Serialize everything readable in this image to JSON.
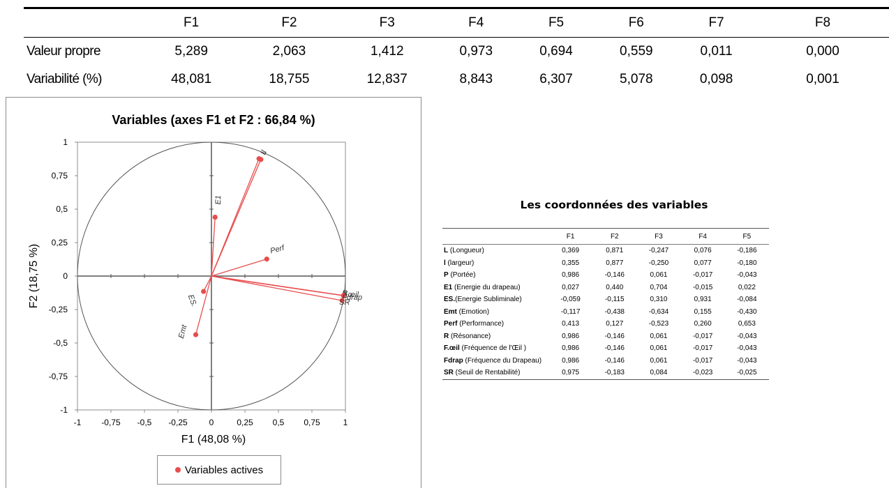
{
  "top_table": {
    "headers": [
      "",
      "F1",
      "F2",
      "F3",
      "F4",
      "F5",
      "F6",
      "F7",
      "F8"
    ],
    "rows": [
      {
        "label": "Valeur propre",
        "values": [
          "5,289",
          "2,063",
          "1,412",
          "0,973",
          "0,694",
          "0,559",
          "0,011",
          "0,000"
        ]
      },
      {
        "label": "Variabilité (%)",
        "values": [
          "48,081",
          "18,755",
          "12,837",
          "8,843",
          "6,307",
          "5,078",
          "0,098",
          "0,001"
        ]
      }
    ]
  },
  "chart_data": {
    "type": "scatter",
    "title": "Variables (axes F1 et F2 : 66,84 %)",
    "xlabel": "F1 (48,08 %)",
    "ylabel": "F2 (18,75 %)",
    "xlim": [
      -1,
      1
    ],
    "ylim": [
      -1,
      1
    ],
    "xticks": [
      "-1",
      "-0,75",
      "-0,5",
      "-0,25",
      "0",
      "0,25",
      "0,5",
      "0,75",
      "1"
    ],
    "yticks": [
      "1",
      "0,75",
      "0,5",
      "0,25",
      "0",
      "-0,25",
      "-0,5",
      "-0,75",
      "-1"
    ],
    "series": [
      {
        "name": "Variables actives",
        "color": "#e84d4d",
        "points": [
          {
            "label": "L",
            "x": 0.369,
            "y": 0.871
          },
          {
            "label": "l",
            "x": 0.355,
            "y": 0.877
          },
          {
            "label": "P",
            "x": 0.986,
            "y": -0.146
          },
          {
            "label": "E1",
            "x": 0.027,
            "y": 0.44
          },
          {
            "label": "ES.",
            "x": -0.059,
            "y": -0.115
          },
          {
            "label": "Emt",
            "x": -0.117,
            "y": -0.438
          },
          {
            "label": "Perf",
            "x": 0.413,
            "y": 0.127
          },
          {
            "label": "R",
            "x": 0.986,
            "y": -0.146
          },
          {
            "label": "F.œil",
            "x": 0.986,
            "y": -0.146
          },
          {
            "label": "Fdrap",
            "x": 0.986,
            "y": -0.146
          },
          {
            "label": "SR",
            "x": 0.975,
            "y": -0.183
          }
        ]
      }
    ],
    "legend": "bottom",
    "grid": false
  },
  "coords_table": {
    "title": "Les coordonnées des variables",
    "headers": [
      "",
      "F1",
      "F2",
      "F3",
      "F4",
      "F5"
    ],
    "rows": [
      {
        "abbr": "L",
        "name": " (Longueur)",
        "values": [
          "0,369",
          "0,871",
          "-0,247",
          "0,076",
          "-0,186"
        ]
      },
      {
        "abbr": "l",
        "name": " (largeur)",
        "values": [
          "0,355",
          "0,877",
          "-0,250",
          "0,077",
          "-0,180"
        ]
      },
      {
        "abbr": "P",
        "name": " (Portée)",
        "values": [
          "0,986",
          "-0,146",
          "0,061",
          "-0,017",
          "-0,043"
        ]
      },
      {
        "abbr": "E1",
        "name": " (Energie du drapeau)",
        "values": [
          "0,027",
          "0,440",
          "0,704",
          "-0,015",
          "0,022"
        ]
      },
      {
        "abbr": "ES.",
        "name": "(Energie Subliminale)",
        "values": [
          "-0,059",
          "-0,115",
          "0,310",
          "0,931",
          "-0,084"
        ]
      },
      {
        "abbr": "Emt",
        "name": " (Emotion)",
        "values": [
          "-0,117",
          "-0,438",
          "-0,634",
          "0,155",
          "-0,430"
        ]
      },
      {
        "abbr": "Perf",
        "name": " (Performance)",
        "values": [
          "0,413",
          "0,127",
          "-0,523",
          "0,260",
          "0,653"
        ]
      },
      {
        "abbr": "R",
        "name": " (Résonance)",
        "values": [
          "0,986",
          "-0,146",
          "0,061",
          "-0,017",
          "-0,043"
        ]
      },
      {
        "abbr": "F.œil",
        "name": " (Fréquence de l'Œil )",
        "values": [
          "0,986",
          "-0,146",
          "0,061",
          "-0,017",
          "-0,043"
        ]
      },
      {
        "abbr": "Fdrap",
        "name": " (Fréquence du Drapeau)",
        "values": [
          "0,986",
          "-0,146",
          "0,061",
          "-0,017",
          "-0,043"
        ]
      },
      {
        "abbr": "SR",
        "name": " (Seuil de Rentabilité)",
        "values": [
          "0,975",
          "-0,183",
          "0,084",
          "-0,023",
          "-0,025"
        ]
      }
    ]
  }
}
